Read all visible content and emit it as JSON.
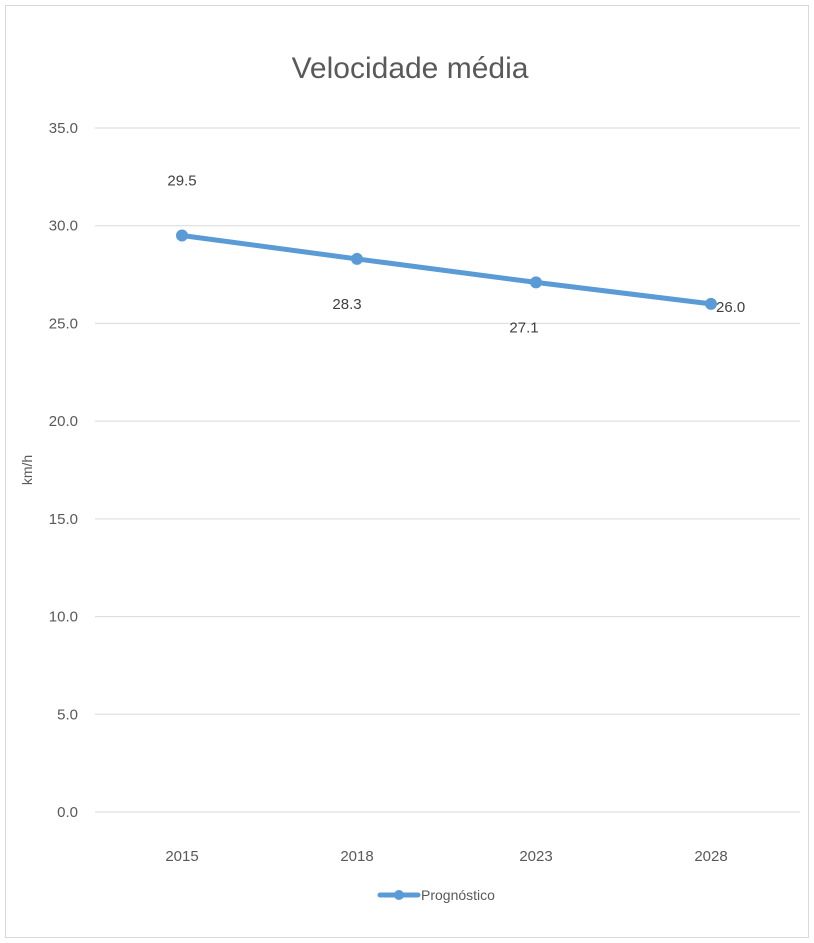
{
  "chart_data": {
    "type": "line",
    "title": "Velocidade média",
    "ylabel": "km/h",
    "xlabel": "",
    "categories": [
      "2015",
      "2018",
      "2023",
      "2028"
    ],
    "series": [
      {
        "name": "Prognóstico",
        "values": [
          29.5,
          28.3,
          27.1,
          26.0
        ],
        "labels": [
          "29.5",
          "28.3",
          "27.1",
          "26.0"
        ],
        "color": "#5b9bd5"
      }
    ],
    "ylim": [
      0,
      35
    ],
    "yticks": [
      "0.0",
      "5.0",
      "10.0",
      "15.0",
      "20.0",
      "25.0",
      "30.0",
      "35.0"
    ],
    "ytick_values": [
      0,
      5,
      10,
      15,
      20,
      25,
      30,
      35
    ],
    "grid": true,
    "legend": "bottom",
    "gridline_color": "#d9d9d9"
  }
}
